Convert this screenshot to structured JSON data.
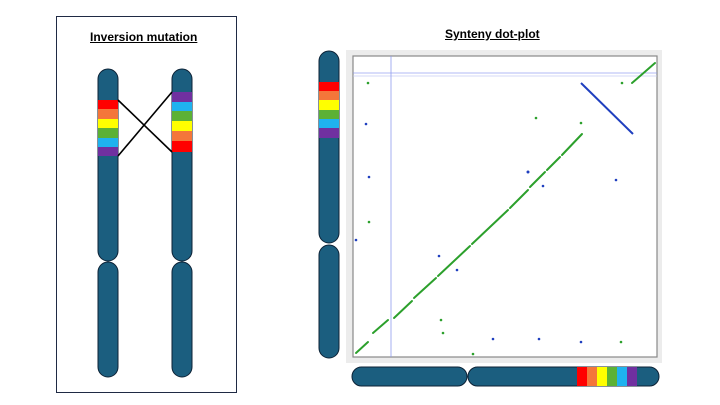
{
  "left_panel": {
    "title": "Inversion mutation"
  },
  "right_panel": {
    "title": "Synteny dot-plot"
  },
  "colors": {
    "chromosome": "#1b5e7f",
    "chromosome_stroke": "#0d2236",
    "band_order_original": [
      "#ff0000",
      "#f4763a",
      "#ffff00",
      "#5cb135",
      "#1fb2ef",
      "#7030a0"
    ],
    "band_order_inverted": [
      "#7030a0",
      "#1fb2ef",
      "#5cb135",
      "#ffff00",
      "#f4763a",
      "#ff0000"
    ],
    "synteny_forward": "#2ca02c",
    "synteny_reverse": "#1f3fbf",
    "guide_lines": "#8f9cf0"
  }
}
